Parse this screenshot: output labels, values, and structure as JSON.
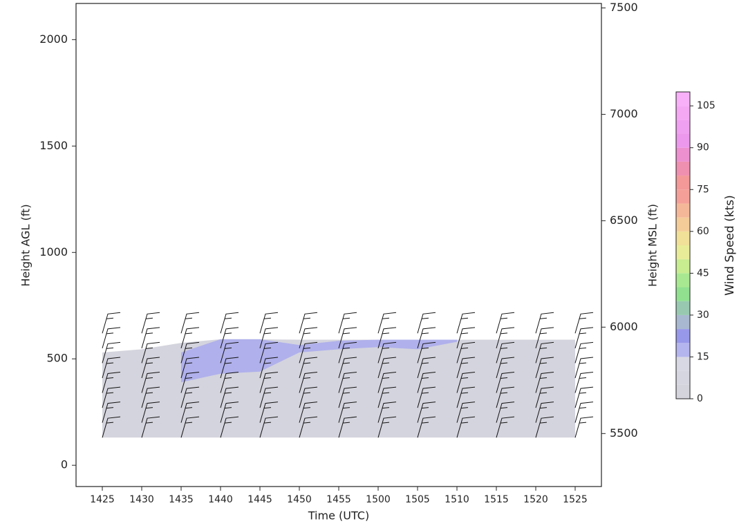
{
  "chart_data": {
    "type": "time-height",
    "x_label": "Time (UTC)",
    "y_label": "Height AGL (ft)",
    "y2_label": "Height MSL (ft)",
    "categories": [
      "1425",
      "1430",
      "1435",
      "1440",
      "1445",
      "1450",
      "1455",
      "1500",
      "1505",
      "1510",
      "1515",
      "1520",
      "1525"
    ],
    "ylim": [
      -100,
      2170
    ],
    "yticks": [
      0,
      500,
      1000,
      1500,
      2000
    ],
    "y2lim": [
      5251,
      7521
    ],
    "y2ticks": [
      5500,
      6000,
      6500,
      7000,
      7500
    ],
    "regions": [
      {
        "color": "#d4d4de",
        "top": [
          530,
          545,
          575,
          592,
          592,
          590,
          590,
          590,
          590,
          590,
          590,
          590,
          590
        ],
        "bottom": [
          130,
          130,
          130,
          130,
          130,
          130,
          130,
          130,
          130,
          130,
          130,
          130,
          130
        ]
      },
      {
        "color": "#b0b0ec",
        "top": [
          null,
          null,
          530,
          592,
          592,
          565,
          585,
          590,
          590,
          590,
          null,
          null,
          null
        ],
        "bottom": [
          null,
          null,
          390,
          430,
          440,
          530,
          545,
          555,
          545,
          580,
          null,
          null,
          null
        ]
      }
    ],
    "barbs": {
      "speed_kts": 15,
      "heights": [
        130,
        200,
        270,
        340,
        410,
        480,
        550,
        620
      ]
    },
    "colorbar": {
      "label": "Wind Speed (kts)",
      "lim": [
        0,
        110
      ],
      "ticks": [
        0,
        15,
        30,
        45,
        60,
        75,
        90,
        105
      ],
      "levels": [
        0,
        5,
        10,
        15,
        20,
        25,
        30,
        35,
        40,
        45,
        50,
        55,
        60,
        65,
        70,
        75,
        80,
        85,
        90,
        95,
        100,
        105,
        110
      ],
      "colors": [
        "#d4d4dc",
        "#d6d6e0",
        "#d8d8e4",
        "#b4b4ee",
        "#9898ea",
        "#a8b8d0",
        "#98c8b0",
        "#90e090",
        "#a8e890",
        "#c8ec90",
        "#e8ec98",
        "#f0e098",
        "#f4cc98",
        "#f4b898",
        "#f4a098",
        "#f49898",
        "#f090b0",
        "#ec90d0",
        "#ec98ec",
        "#f0a0f0",
        "#f4a8f4",
        "#f8b0f8"
      ]
    }
  }
}
